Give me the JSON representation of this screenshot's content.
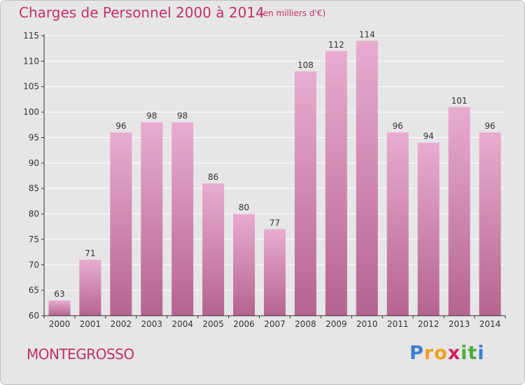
{
  "header": {
    "title": "Charges de Personnel 2000 à 2014",
    "subtitle": "(en milliers d'€)"
  },
  "commune": "MONTEGROSSO",
  "logo": {
    "letters": [
      "P",
      "r",
      "o",
      "x",
      "i",
      "t",
      "i"
    ],
    "colors": [
      "#3a7fd0",
      "#f0a020",
      "#f0a020",
      "#d02060",
      "#4cae3c",
      "#4cae3c",
      "#3a7fd0"
    ]
  },
  "colors": {
    "bar_light": "#e9acd0",
    "bar_dark": "#b5648f",
    "text": "#c0306a",
    "axis": "#333333",
    "grid": "#ffffff"
  },
  "chart_data": {
    "type": "bar",
    "title": "Charges de Personnel 2000 à 2014",
    "subtitle": "(en milliers d'€)",
    "xlabel": "",
    "ylabel": "",
    "categories": [
      "2000",
      "2001",
      "2002",
      "2003",
      "2004",
      "2005",
      "2006",
      "2007",
      "2008",
      "2009",
      "2010",
      "2011",
      "2012",
      "2013",
      "2014"
    ],
    "values": [
      63,
      71,
      96,
      98,
      98,
      86,
      80,
      77,
      108,
      112,
      114,
      96,
      94,
      101,
      96
    ],
    "ylim": [
      60,
      115
    ],
    "yticks": [
      60,
      65,
      70,
      75,
      80,
      85,
      90,
      95,
      100,
      105,
      110,
      115
    ],
    "grid": true,
    "data_labels": true
  }
}
